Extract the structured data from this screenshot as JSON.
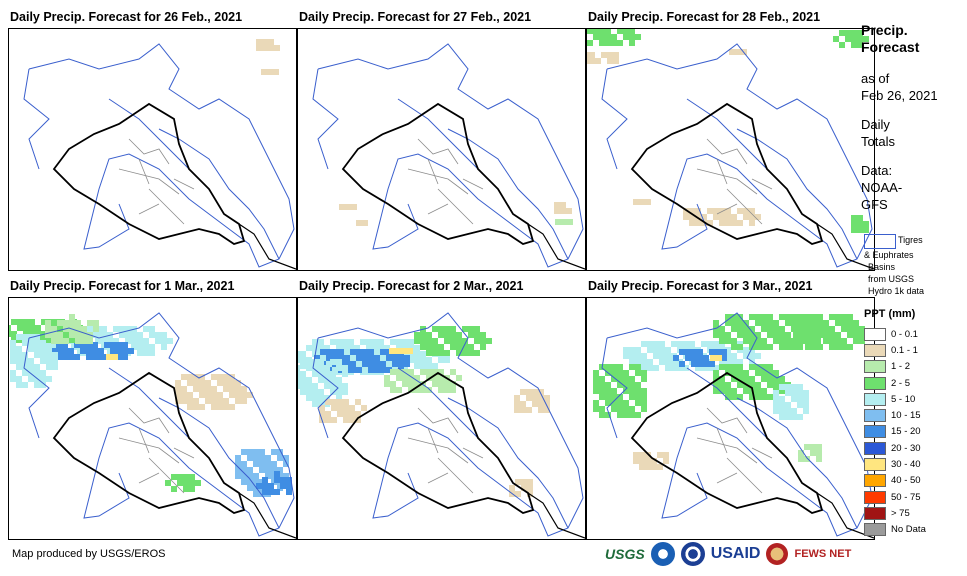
{
  "panels": [
    {
      "title": "Daily Precip. Forecast for 26 Feb., 2021"
    },
    {
      "title": "Daily Precip. Forecast for 27 Feb., 2021"
    },
    {
      "title": "Daily Precip. Forecast for 28 Feb., 2021"
    },
    {
      "title": "Daily Precip. Forecast for 1 Mar., 2021"
    },
    {
      "title": "Daily Precip. Forecast for 2 Mar., 2021"
    },
    {
      "title": "Daily Precip. Forecast for 3 Mar., 2021"
    }
  ],
  "legend": {
    "title_line1": "Precip.",
    "title_line2": "Forecast",
    "asof_line1": "as of",
    "asof_line2": "Feb 26, 2021",
    "totals_line1": "Daily",
    "totals_line2": "Totals",
    "data_line1": "Data:",
    "data_line2": "NOAA-",
    "data_line3": "GFS",
    "basin_line1": "Tigres",
    "basin_line2": "& Euphrates",
    "basin_line3": "Basins",
    "basin_line4": "from USGS",
    "basin_line5": "Hydro 1k data",
    "ppt_title": "PPT (mm)",
    "ppt_classes": [
      {
        "label": "0 - 0.1",
        "color": "#ffffff"
      },
      {
        "label": "0.1 - 1",
        "color": "#ead9b8"
      },
      {
        "label": "1 - 2",
        "color": "#b7ebad"
      },
      {
        "label": "2 - 5",
        "color": "#6ee06e"
      },
      {
        "label": "5 - 10",
        "color": "#b4eef0"
      },
      {
        "label": "10 - 15",
        "color": "#7fbef0"
      },
      {
        "label": "15 - 20",
        "color": "#3f8de3"
      },
      {
        "label": "20 - 30",
        "color": "#2c58d6"
      },
      {
        "label": "30 - 40",
        "color": "#ffe680"
      },
      {
        "label": "40 - 50",
        "color": "#ffa600"
      },
      {
        "label": "50 - 75",
        "color": "#ff3a00"
      },
      {
        "label": "> 75",
        "color": "#a01414"
      },
      {
        "label": "No Data",
        "color": "#9b9b9b"
      }
    ]
  },
  "credit": "Map produced by USGS/EROS",
  "logos": {
    "usgs": "USGS",
    "usaid": "USAID",
    "fews": "FEWS NET"
  }
}
